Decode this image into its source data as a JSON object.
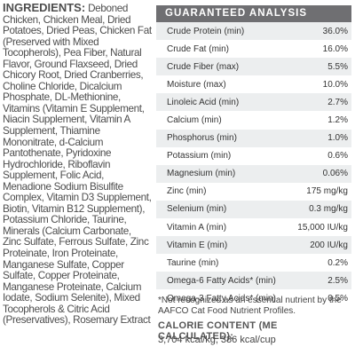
{
  "ingredients": {
    "title": "INGREDIENTS:",
    "text": "Deboned Chicken, Chicken Meal, Dried Potatoes, Dried Peas, Chicken Fat (Preserved with Mixed Tocopherols), Pea Fiber, Natural Flavor, Ground Flaxseed, Dried Chicory Root, Dried Cranberries, Choline Chloride, Dicalcium Phosphate, DL-Methionine, Vitamins (Vitamin E Supplement, Niacin Supplement, Vitamin A Supplement, Thiamine Mononitrate, d-Calcium Pantothenate, Pyridoxine Hydrochloride, Riboflavin Supplement, Folic Acid, Menadione Sodium Bisulfite Complex, Vitamin D3 Supplement, Biotin, Vitamin B12 Supplement), Potassium Chloride, Taurine, Minerals (Calcium Carbonate, Zinc Sulfate, Ferrous Sulfate, Zinc Proteinate, Iron Proteinate, Manganese Sulfate, Copper Sulfate, Copper Proteinate, Manganese Proteinate, Calcium Iodate, Sodium Selenite), Mixed Tocopherols & Citric Acid (Preservatives), Rosemary Extract"
  },
  "analysis": {
    "header": "GUARANTEED ANALYSIS",
    "rows": [
      {
        "label": "Crude Protein (min)",
        "value": "36.0%"
      },
      {
        "label": "Crude Fat (min)",
        "value": "16.0%"
      },
      {
        "label": "Crude Fiber (max)",
        "value": "5.5%"
      },
      {
        "label": "Moisture (max)",
        "value": "10.0%"
      },
      {
        "label": "Linoleic Acid (min)",
        "value": "2.7%"
      },
      {
        "label": "Calcium (min)",
        "value": "1.2%"
      },
      {
        "label": "Phosphorus (min)",
        "value": "1.0%"
      },
      {
        "label": "Potassium (min)",
        "value": "0.6%"
      },
      {
        "label": "Magnesium (min)",
        "value": "0.06%"
      },
      {
        "label": "Zinc (min)",
        "value": "175 mg/kg"
      },
      {
        "label": "Selenium (min)",
        "value": "0.3 mg/kg"
      },
      {
        "label": "Vitamin A (min)",
        "value": "15,000 IU/kg"
      },
      {
        "label": "Vitamin E (min)",
        "value": "200 IU/kg"
      },
      {
        "label": "Taurine (min)",
        "value": "0.2%"
      },
      {
        "label": "Omega-6 Fatty Acids* (min)",
        "value": "2.5%"
      },
      {
        "label": "Omega-3 Fatty Acids* (min)",
        "value": "0.5%"
      }
    ],
    "footnote": "*Not recognized as an essential nutrient by the AAFCO Cat Food Nutrient Profiles."
  },
  "calorie": {
    "title": "CALORIE CONTENT (ME CALCULATED):",
    "value": "3,704 kcal/kg, 386 kcal/cup"
  }
}
